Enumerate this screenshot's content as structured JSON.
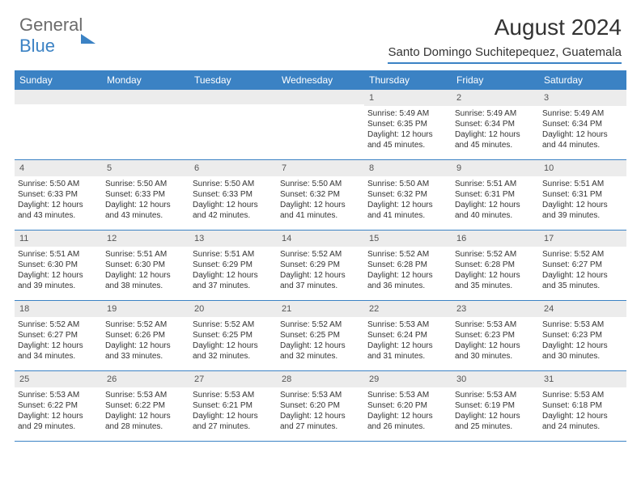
{
  "logo": {
    "part1": "General",
    "part2": "Blue"
  },
  "title": "August 2024",
  "location": "Santo Domingo Suchitepequez, Guatemala",
  "colors": {
    "accent": "#3b82c4",
    "header_bg": "#3b82c4",
    "daynum_bg": "#ececec",
    "text": "#333333",
    "logo_grey": "#6b6b6b"
  },
  "day_headers": [
    "Sunday",
    "Monday",
    "Tuesday",
    "Wednesday",
    "Thursday",
    "Friday",
    "Saturday"
  ],
  "weeks": [
    [
      {
        "n": "",
        "lines": []
      },
      {
        "n": "",
        "lines": []
      },
      {
        "n": "",
        "lines": []
      },
      {
        "n": "",
        "lines": []
      },
      {
        "n": "1",
        "lines": [
          "Sunrise: 5:49 AM",
          "Sunset: 6:35 PM",
          "Daylight: 12 hours and 45 minutes."
        ]
      },
      {
        "n": "2",
        "lines": [
          "Sunrise: 5:49 AM",
          "Sunset: 6:34 PM",
          "Daylight: 12 hours and 45 minutes."
        ]
      },
      {
        "n": "3",
        "lines": [
          "Sunrise: 5:49 AM",
          "Sunset: 6:34 PM",
          "Daylight: 12 hours and 44 minutes."
        ]
      }
    ],
    [
      {
        "n": "4",
        "lines": [
          "Sunrise: 5:50 AM",
          "Sunset: 6:33 PM",
          "Daylight: 12 hours and 43 minutes."
        ]
      },
      {
        "n": "5",
        "lines": [
          "Sunrise: 5:50 AM",
          "Sunset: 6:33 PM",
          "Daylight: 12 hours and 43 minutes."
        ]
      },
      {
        "n": "6",
        "lines": [
          "Sunrise: 5:50 AM",
          "Sunset: 6:33 PM",
          "Daylight: 12 hours and 42 minutes."
        ]
      },
      {
        "n": "7",
        "lines": [
          "Sunrise: 5:50 AM",
          "Sunset: 6:32 PM",
          "Daylight: 12 hours and 41 minutes."
        ]
      },
      {
        "n": "8",
        "lines": [
          "Sunrise: 5:50 AM",
          "Sunset: 6:32 PM",
          "Daylight: 12 hours and 41 minutes."
        ]
      },
      {
        "n": "9",
        "lines": [
          "Sunrise: 5:51 AM",
          "Sunset: 6:31 PM",
          "Daylight: 12 hours and 40 minutes."
        ]
      },
      {
        "n": "10",
        "lines": [
          "Sunrise: 5:51 AM",
          "Sunset: 6:31 PM",
          "Daylight: 12 hours and 39 minutes."
        ]
      }
    ],
    [
      {
        "n": "11",
        "lines": [
          "Sunrise: 5:51 AM",
          "Sunset: 6:30 PM",
          "Daylight: 12 hours and 39 minutes."
        ]
      },
      {
        "n": "12",
        "lines": [
          "Sunrise: 5:51 AM",
          "Sunset: 6:30 PM",
          "Daylight: 12 hours and 38 minutes."
        ]
      },
      {
        "n": "13",
        "lines": [
          "Sunrise: 5:51 AM",
          "Sunset: 6:29 PM",
          "Daylight: 12 hours and 37 minutes."
        ]
      },
      {
        "n": "14",
        "lines": [
          "Sunrise: 5:52 AM",
          "Sunset: 6:29 PM",
          "Daylight: 12 hours and 37 minutes."
        ]
      },
      {
        "n": "15",
        "lines": [
          "Sunrise: 5:52 AM",
          "Sunset: 6:28 PM",
          "Daylight: 12 hours and 36 minutes."
        ]
      },
      {
        "n": "16",
        "lines": [
          "Sunrise: 5:52 AM",
          "Sunset: 6:28 PM",
          "Daylight: 12 hours and 35 minutes."
        ]
      },
      {
        "n": "17",
        "lines": [
          "Sunrise: 5:52 AM",
          "Sunset: 6:27 PM",
          "Daylight: 12 hours and 35 minutes."
        ]
      }
    ],
    [
      {
        "n": "18",
        "lines": [
          "Sunrise: 5:52 AM",
          "Sunset: 6:27 PM",
          "Daylight: 12 hours and 34 minutes."
        ]
      },
      {
        "n": "19",
        "lines": [
          "Sunrise: 5:52 AM",
          "Sunset: 6:26 PM",
          "Daylight: 12 hours and 33 minutes."
        ]
      },
      {
        "n": "20",
        "lines": [
          "Sunrise: 5:52 AM",
          "Sunset: 6:25 PM",
          "Daylight: 12 hours and 32 minutes."
        ]
      },
      {
        "n": "21",
        "lines": [
          "Sunrise: 5:52 AM",
          "Sunset: 6:25 PM",
          "Daylight: 12 hours and 32 minutes."
        ]
      },
      {
        "n": "22",
        "lines": [
          "Sunrise: 5:53 AM",
          "Sunset: 6:24 PM",
          "Daylight: 12 hours and 31 minutes."
        ]
      },
      {
        "n": "23",
        "lines": [
          "Sunrise: 5:53 AM",
          "Sunset: 6:23 PM",
          "Daylight: 12 hours and 30 minutes."
        ]
      },
      {
        "n": "24",
        "lines": [
          "Sunrise: 5:53 AM",
          "Sunset: 6:23 PM",
          "Daylight: 12 hours and 30 minutes."
        ]
      }
    ],
    [
      {
        "n": "25",
        "lines": [
          "Sunrise: 5:53 AM",
          "Sunset: 6:22 PM",
          "Daylight: 12 hours and 29 minutes."
        ]
      },
      {
        "n": "26",
        "lines": [
          "Sunrise: 5:53 AM",
          "Sunset: 6:22 PM",
          "Daylight: 12 hours and 28 minutes."
        ]
      },
      {
        "n": "27",
        "lines": [
          "Sunrise: 5:53 AM",
          "Sunset: 6:21 PM",
          "Daylight: 12 hours and 27 minutes."
        ]
      },
      {
        "n": "28",
        "lines": [
          "Sunrise: 5:53 AM",
          "Sunset: 6:20 PM",
          "Daylight: 12 hours and 27 minutes."
        ]
      },
      {
        "n": "29",
        "lines": [
          "Sunrise: 5:53 AM",
          "Sunset: 6:20 PM",
          "Daylight: 12 hours and 26 minutes."
        ]
      },
      {
        "n": "30",
        "lines": [
          "Sunrise: 5:53 AM",
          "Sunset: 6:19 PM",
          "Daylight: 12 hours and 25 minutes."
        ]
      },
      {
        "n": "31",
        "lines": [
          "Sunrise: 5:53 AM",
          "Sunset: 6:18 PM",
          "Daylight: 12 hours and 24 minutes."
        ]
      }
    ]
  ]
}
